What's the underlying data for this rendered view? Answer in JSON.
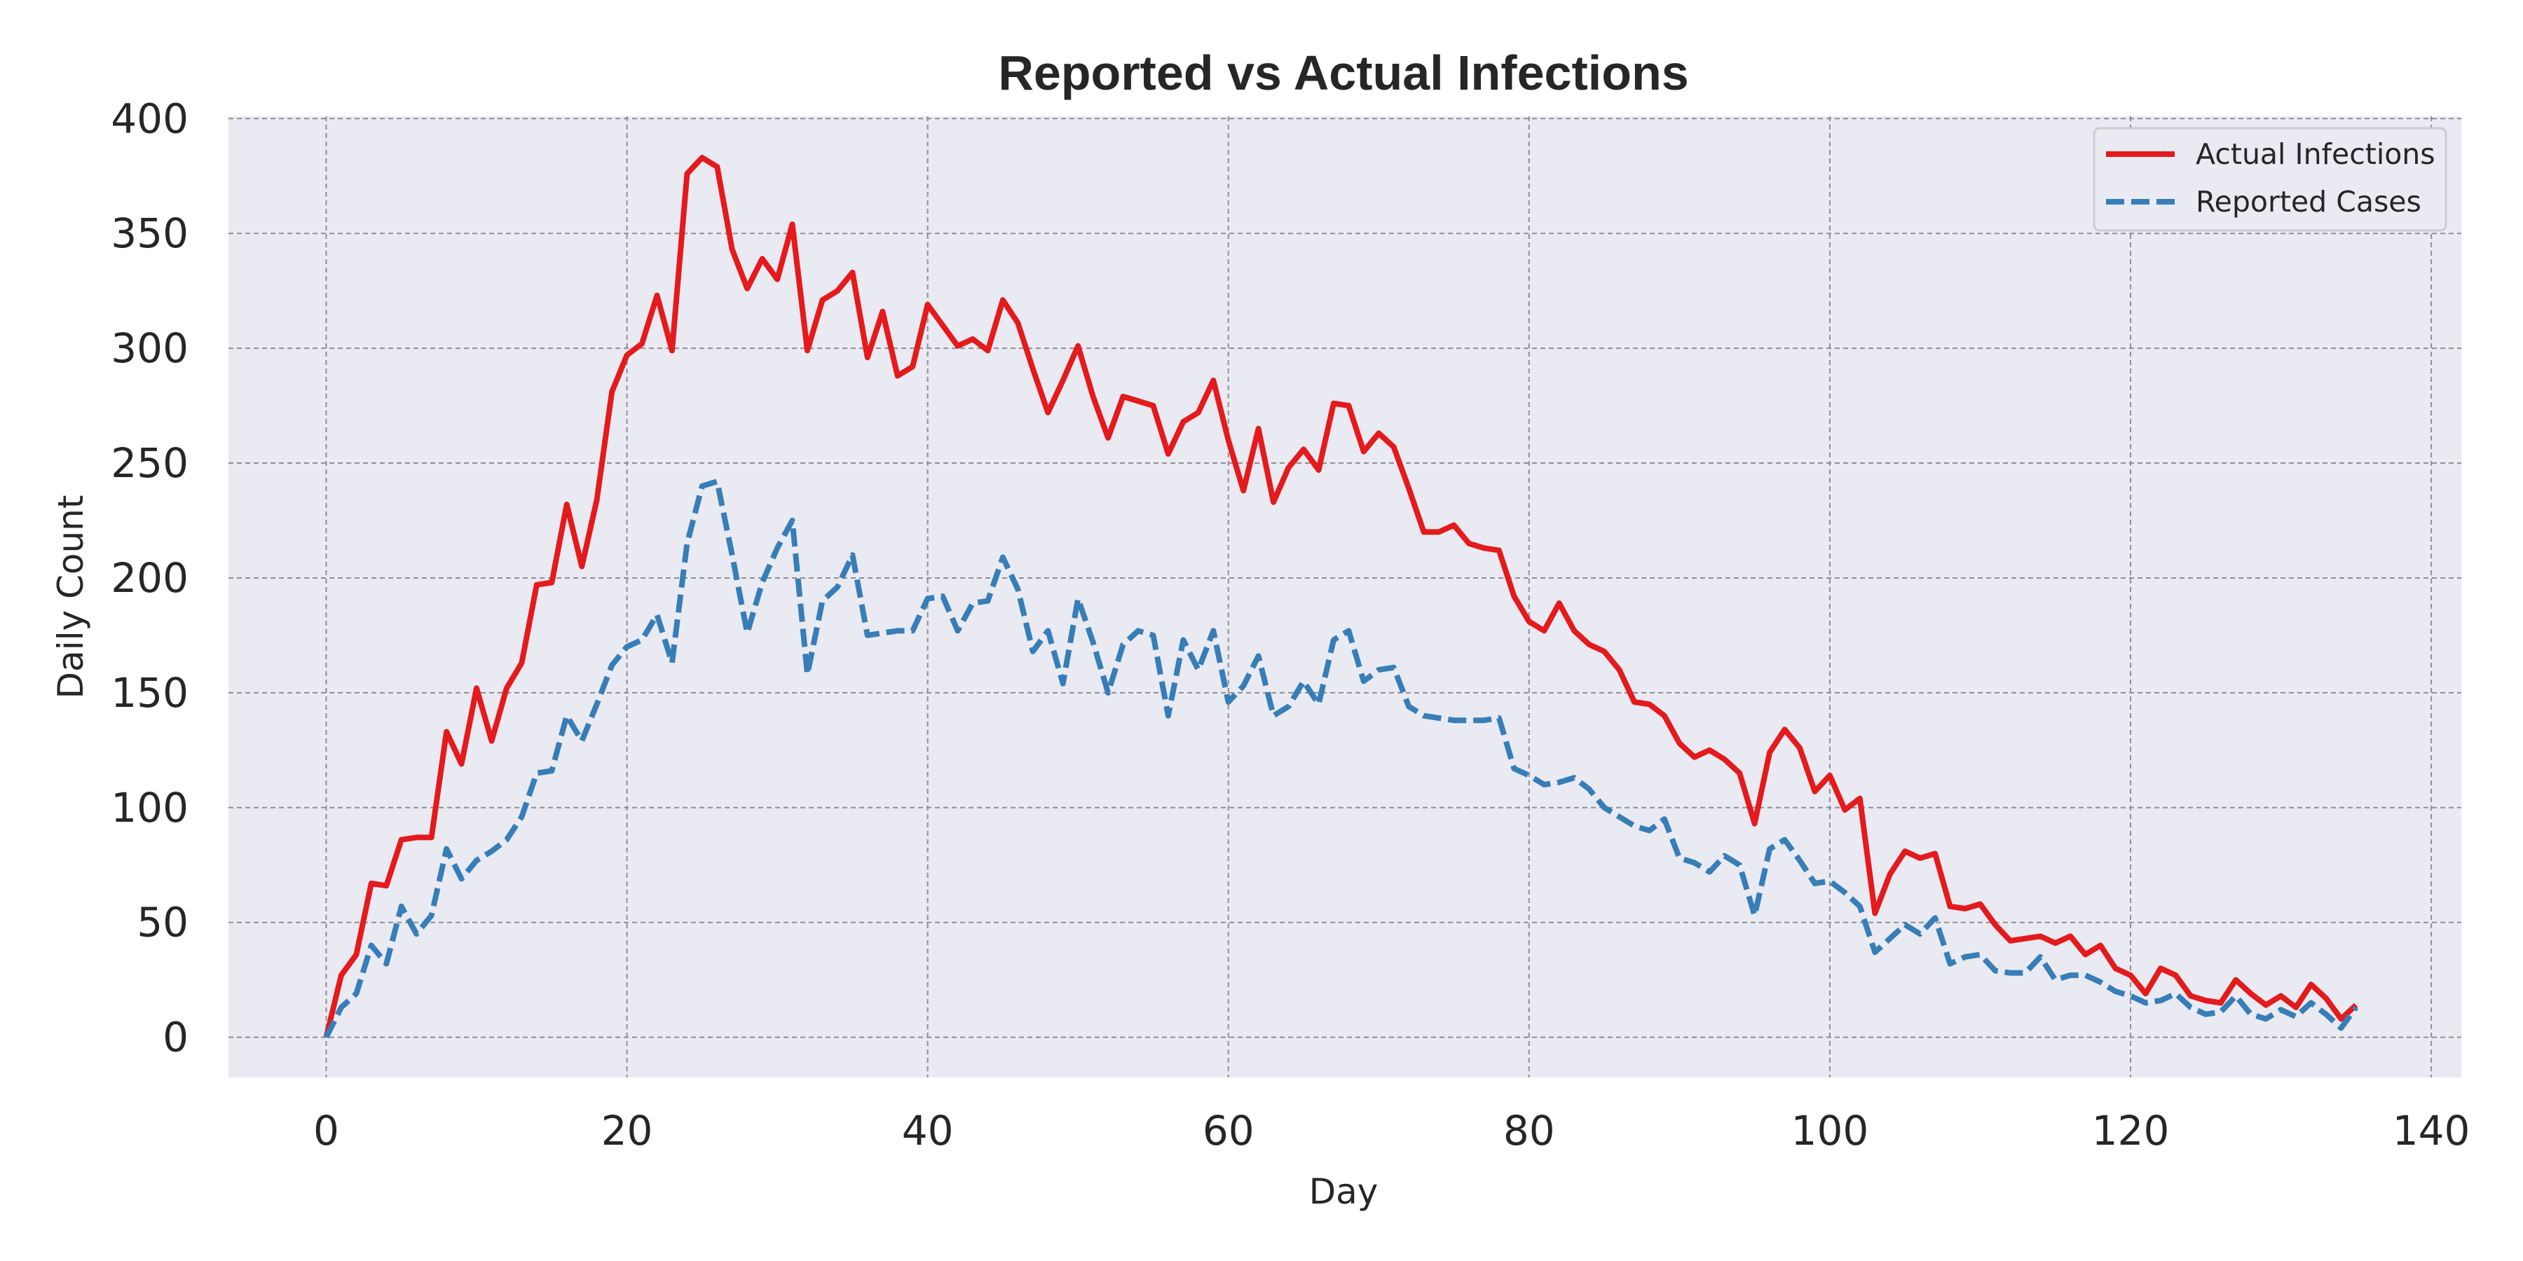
{
  "chart_data": {
    "type": "line",
    "title": "Reported vs Actual Infections",
    "xlabel": "Day",
    "ylabel": "Daily Count",
    "xlim": [
      -6.5,
      142
    ],
    "ylim": [
      -17.5,
      401
    ],
    "xticks": [
      0,
      20,
      40,
      60,
      80,
      100,
      120,
      140
    ],
    "yticks": [
      0,
      50,
      100,
      150,
      200,
      250,
      300,
      350,
      400
    ],
    "grid": true,
    "legend_position": "top-right",
    "series": [
      {
        "name": "Actual Infections",
        "color": "#e41a1c",
        "style": "solid",
        "x": [
          0,
          1,
          2,
          3,
          4,
          5,
          6,
          7,
          8,
          9,
          10,
          11,
          12,
          13,
          14,
          15,
          16,
          17,
          18,
          19,
          20,
          21,
          22,
          23,
          24,
          25,
          26,
          27,
          28,
          29,
          30,
          31,
          32,
          33,
          34,
          35,
          36,
          37,
          38,
          39,
          40,
          41,
          42,
          43,
          44,
          45,
          46,
          47,
          48,
          49,
          50,
          51,
          52,
          53,
          54,
          55,
          56,
          57,
          58,
          59,
          60,
          61,
          62,
          63,
          64,
          65,
          66,
          67,
          68,
          69,
          70,
          71,
          72,
          73,
          74,
          75,
          76,
          77,
          78,
          79,
          80,
          81,
          82,
          83,
          84,
          85,
          86,
          87,
          88,
          89,
          90,
          91,
          92,
          93,
          94,
          95,
          96,
          97,
          98,
          99,
          100,
          101,
          102,
          103,
          104,
          105,
          106,
          107,
          108,
          109,
          110,
          111,
          112,
          113,
          114,
          115,
          116,
          117,
          118,
          119,
          120,
          121,
          122,
          123,
          124,
          125,
          126,
          127,
          128,
          129,
          130,
          131,
          132,
          133,
          134,
          135
        ],
        "y": [
          0,
          27,
          36,
          67,
          66,
          86,
          87,
          87,
          133,
          119,
          152,
          129,
          152,
          163,
          197,
          198,
          232,
          205,
          234,
          281,
          297,
          302,
          323,
          299,
          376,
          383,
          379,
          343,
          326,
          339,
          330,
          354,
          299,
          321,
          325,
          333,
          296,
          316,
          288,
          292,
          319,
          310,
          301,
          304,
          299,
          321,
          311,
          291,
          272,
          286,
          301,
          279,
          261,
          279,
          277,
          275,
          254,
          268,
          272,
          286,
          260,
          238,
          265,
          233,
          248,
          256,
          247,
          276,
          275,
          255,
          263,
          257,
          239,
          220,
          220,
          223,
          215,
          213,
          212,
          192,
          181,
          177,
          189,
          177,
          171,
          168,
          160,
          146,
          145,
          140,
          128,
          122,
          125,
          121,
          115,
          93,
          124,
          134,
          126,
          107,
          114,
          99,
          104,
          54,
          71,
          81,
          78,
          80,
          57,
          56,
          58,
          49,
          42,
          43,
          44,
          41,
          44,
          36,
          40,
          30,
          27,
          19,
          30,
          27,
          18,
          16,
          15,
          25,
          19,
          14,
          18,
          13,
          23,
          17,
          8,
          14
        ]
      },
      {
        "name": "Reported Cases",
        "color": "#377eb8",
        "style": "dashed",
        "x": [
          0,
          1,
          2,
          3,
          4,
          5,
          6,
          7,
          8,
          9,
          10,
          11,
          12,
          13,
          14,
          15,
          16,
          17,
          18,
          19,
          20,
          21,
          22,
          23,
          24,
          25,
          26,
          27,
          28,
          29,
          30,
          31,
          32,
          33,
          34,
          35,
          36,
          37,
          38,
          39,
          40,
          41,
          42,
          43,
          44,
          45,
          46,
          47,
          48,
          49,
          50,
          51,
          52,
          53,
          54,
          55,
          56,
          57,
          58,
          59,
          60,
          61,
          62,
          63,
          64,
          65,
          66,
          67,
          68,
          69,
          70,
          71,
          72,
          73,
          74,
          75,
          76,
          77,
          78,
          79,
          80,
          81,
          82,
          83,
          84,
          85,
          86,
          87,
          88,
          89,
          90,
          91,
          92,
          93,
          94,
          95,
          96,
          97,
          98,
          99,
          100,
          101,
          102,
          103,
          104,
          105,
          106,
          107,
          108,
          109,
          110,
          111,
          112,
          113,
          114,
          115,
          116,
          117,
          118,
          119,
          120,
          121,
          122,
          123,
          124,
          125,
          126,
          127,
          128,
          129,
          130,
          131,
          132,
          133,
          134,
          135
        ],
        "y": [
          0,
          13,
          19,
          40,
          32,
          57,
          45,
          53,
          82,
          69,
          77,
          81,
          86,
          96,
          115,
          116,
          140,
          129,
          145,
          162,
          170,
          173,
          184,
          163,
          215,
          240,
          242,
          210,
          176,
          198,
          213,
          225,
          158,
          190,
          196,
          210,
          175,
          176,
          177,
          177,
          191,
          192,
          177,
          189,
          190,
          209,
          195,
          168,
          177,
          154,
          191,
          172,
          150,
          171,
          177,
          175,
          140,
          173,
          160,
          177,
          146,
          153,
          166,
          140,
          144,
          155,
          145,
          173,
          177,
          155,
          160,
          161,
          144,
          140,
          139,
          138,
          138,
          138,
          139,
          117,
          114,
          110,
          111,
          113,
          108,
          100,
          96,
          92,
          90,
          95,
          78,
          76,
          72,
          79,
          75,
          53,
          82,
          86,
          77,
          67,
          68,
          63,
          57,
          37,
          43,
          49,
          45,
          52,
          32,
          35,
          36,
          29,
          28,
          28,
          35,
          25,
          27,
          27,
          24,
          20,
          18,
          15,
          16,
          19,
          13,
          10,
          11,
          18,
          10,
          8,
          12,
          9,
          15,
          10,
          4,
          13
        ]
      }
    ]
  }
}
